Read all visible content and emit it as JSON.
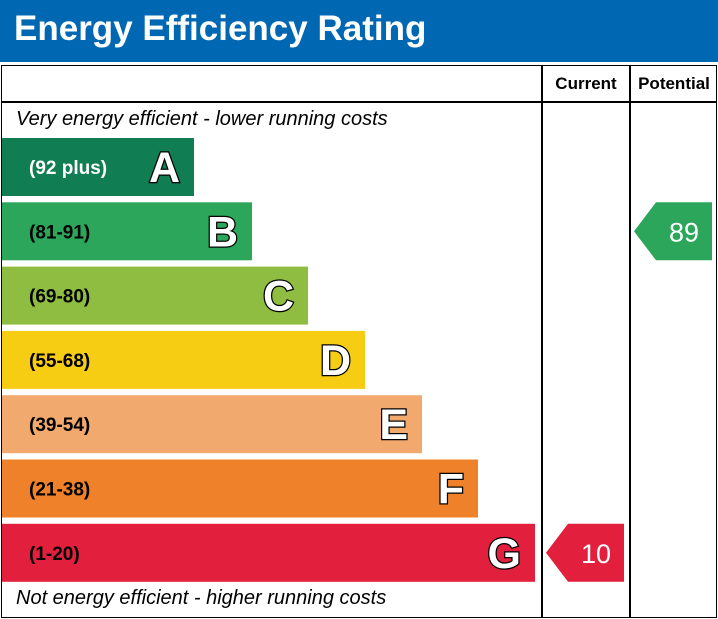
{
  "title": "Energy Efficiency Rating",
  "columns": {
    "current": "Current",
    "potential": "Potential"
  },
  "notes": {
    "top": "Very energy efficient - lower running costs",
    "bottom": "Not energy efficient - higher running costs"
  },
  "chart_data": {
    "type": "bar",
    "title": "Energy Efficiency Rating",
    "categories": [
      "A",
      "B",
      "C",
      "D",
      "E",
      "F",
      "G"
    ],
    "ranges": [
      "(92 plus)",
      "(81-91)",
      "(69-80)",
      "(55-68)",
      "(39-54)",
      "(21-38)",
      "(1-20)"
    ],
    "colors": [
      "#117d52",
      "#2ca65a",
      "#8ebd41",
      "#f7cd14",
      "#f2a96d",
      "#ee8129",
      "#e21f3c"
    ],
    "current": {
      "value": 10,
      "band": "G",
      "color": "#e21f3c"
    },
    "potential": {
      "value": 89,
      "band": "B",
      "color": "#2ca65a"
    }
  }
}
